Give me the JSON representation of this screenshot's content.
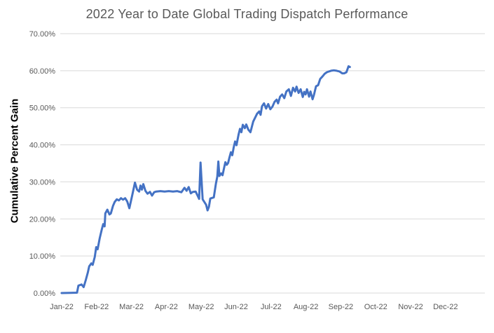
{
  "title": "2022 Year to Date Global Trading Dispatch Performance",
  "chart_data": {
    "type": "line",
    "title": "2022 Year to Date Global Trading Dispatch Performance",
    "xlabel": "",
    "ylabel": "Cumulative Percent Gain",
    "x_categories": [
      "Jan-22",
      "Feb-22",
      "Mar-22",
      "Apr-22",
      "May-22",
      "Jun-22",
      "Jul-22",
      "Aug-22",
      "Sep-22",
      "Oct-22",
      "Nov-22",
      "Dec-22"
    ],
    "y_ticks": [
      "0.00%",
      "10.00%",
      "20.00%",
      "30.00%",
      "40.00%",
      "50.00%",
      "60.00%",
      "70.00%"
    ],
    "ylim": [
      0,
      70
    ],
    "grid": "horizontal-only",
    "legend": "none",
    "line_color": "#4472C4",
    "gridline_color": "#D9D9D9",
    "text_color": "#595959",
    "series": [
      {
        "name": "Cumulative Percent Gain",
        "x_unit": "months since Jan-22 (fractional)",
        "y_unit": "percent",
        "points": [
          [
            0.0,
            0.0
          ],
          [
            0.24,
            0.05
          ],
          [
            0.44,
            0.1
          ],
          [
            0.48,
            2.0
          ],
          [
            0.57,
            2.3
          ],
          [
            0.63,
            1.6
          ],
          [
            0.69,
            3.5
          ],
          [
            0.75,
            5.5
          ],
          [
            0.79,
            7.2
          ],
          [
            0.85,
            8.0
          ],
          [
            0.89,
            7.6
          ],
          [
            0.95,
            9.8
          ],
          [
            0.99,
            12.4
          ],
          [
            1.03,
            11.8
          ],
          [
            1.09,
            14.8
          ],
          [
            1.15,
            17.2
          ],
          [
            1.19,
            18.6
          ],
          [
            1.23,
            18.0
          ],
          [
            1.25,
            21.5
          ],
          [
            1.31,
            22.5
          ],
          [
            1.37,
            21.2
          ],
          [
            1.41,
            21.5
          ],
          [
            1.47,
            23.5
          ],
          [
            1.52,
            24.6
          ],
          [
            1.58,
            25.3
          ],
          [
            1.64,
            25.0
          ],
          [
            1.7,
            25.6
          ],
          [
            1.76,
            25.2
          ],
          [
            1.82,
            25.6
          ],
          [
            1.88,
            24.7
          ],
          [
            1.94,
            22.9
          ],
          [
            2.02,
            26.3
          ],
          [
            2.1,
            29.8
          ],
          [
            2.16,
            27.9
          ],
          [
            2.22,
            27.4
          ],
          [
            2.26,
            29.0
          ],
          [
            2.3,
            27.9
          ],
          [
            2.34,
            29.4
          ],
          [
            2.4,
            27.6
          ],
          [
            2.46,
            26.8
          ],
          [
            2.53,
            27.3
          ],
          [
            2.59,
            26.3
          ],
          [
            2.65,
            27.2
          ],
          [
            2.71,
            27.4
          ],
          [
            2.83,
            27.5
          ],
          [
            2.95,
            27.4
          ],
          [
            3.07,
            27.5
          ],
          [
            3.19,
            27.4
          ],
          [
            3.31,
            27.5
          ],
          [
            3.43,
            27.2
          ],
          [
            3.52,
            28.4
          ],
          [
            3.58,
            27.6
          ],
          [
            3.64,
            28.6
          ],
          [
            3.7,
            26.9
          ],
          [
            3.76,
            27.3
          ],
          [
            3.84,
            27.4
          ],
          [
            3.9,
            26.2
          ],
          [
            3.94,
            25.4
          ],
          [
            3.98,
            35.2
          ],
          [
            4.04,
            25.3
          ],
          [
            4.1,
            24.4
          ],
          [
            4.14,
            23.8
          ],
          [
            4.18,
            22.3
          ],
          [
            4.22,
            23.3
          ],
          [
            4.26,
            25.5
          ],
          [
            4.32,
            25.7
          ],
          [
            4.36,
            25.8
          ],
          [
            4.42,
            29.5
          ],
          [
            4.46,
            31.4
          ],
          [
            4.49,
            35.5
          ],
          [
            4.52,
            31.6
          ],
          [
            4.57,
            32.3
          ],
          [
            4.61,
            31.8
          ],
          [
            4.65,
            33.6
          ],
          [
            4.69,
            35.3
          ],
          [
            4.73,
            34.6
          ],
          [
            4.77,
            35.1
          ],
          [
            4.81,
            36.6
          ],
          [
            4.85,
            38.0
          ],
          [
            4.89,
            37.2
          ],
          [
            4.93,
            39.3
          ],
          [
            4.97,
            40.9
          ],
          [
            5.01,
            39.9
          ],
          [
            5.07,
            42.8
          ],
          [
            5.11,
            44.3
          ],
          [
            5.15,
            43.4
          ],
          [
            5.19,
            45.4
          ],
          [
            5.25,
            44.5
          ],
          [
            5.29,
            45.5
          ],
          [
            5.35,
            44.1
          ],
          [
            5.41,
            43.4
          ],
          [
            5.49,
            46.3
          ],
          [
            5.6,
            48.4
          ],
          [
            5.66,
            49.0
          ],
          [
            5.7,
            48.1
          ],
          [
            5.74,
            50.4
          ],
          [
            5.8,
            51.2
          ],
          [
            5.86,
            49.8
          ],
          [
            5.92,
            51.0
          ],
          [
            5.98,
            49.6
          ],
          [
            6.04,
            50.3
          ],
          [
            6.1,
            51.6
          ],
          [
            6.16,
            52.2
          ],
          [
            6.2,
            51.2
          ],
          [
            6.26,
            53.0
          ],
          [
            6.32,
            53.6
          ],
          [
            6.38,
            52.6
          ],
          [
            6.44,
            54.4
          ],
          [
            6.51,
            55.0
          ],
          [
            6.57,
            53.2
          ],
          [
            6.63,
            55.4
          ],
          [
            6.69,
            54.4
          ],
          [
            6.73,
            55.7
          ],
          [
            6.79,
            54.0
          ],
          [
            6.85,
            55.0
          ],
          [
            6.91,
            52.9
          ],
          [
            6.95,
            54.3
          ],
          [
            6.99,
            53.6
          ],
          [
            7.03,
            55.0
          ],
          [
            7.09,
            53.0
          ],
          [
            7.13,
            54.4
          ],
          [
            7.19,
            52.3
          ],
          [
            7.23,
            53.5
          ],
          [
            7.29,
            55.8
          ],
          [
            7.35,
            56.1
          ],
          [
            7.41,
            57.8
          ],
          [
            7.47,
            58.4
          ],
          [
            7.54,
            59.2
          ],
          [
            7.6,
            59.6
          ],
          [
            7.66,
            59.8
          ],
          [
            7.72,
            60.0
          ],
          [
            7.8,
            60.1
          ],
          [
            7.88,
            60.0
          ],
          [
            7.96,
            59.8
          ],
          [
            8.04,
            59.3
          ],
          [
            8.1,
            59.3
          ],
          [
            8.16,
            59.6
          ],
          [
            8.22,
            61.2
          ],
          [
            8.26,
            61.0
          ]
        ]
      }
    ]
  }
}
